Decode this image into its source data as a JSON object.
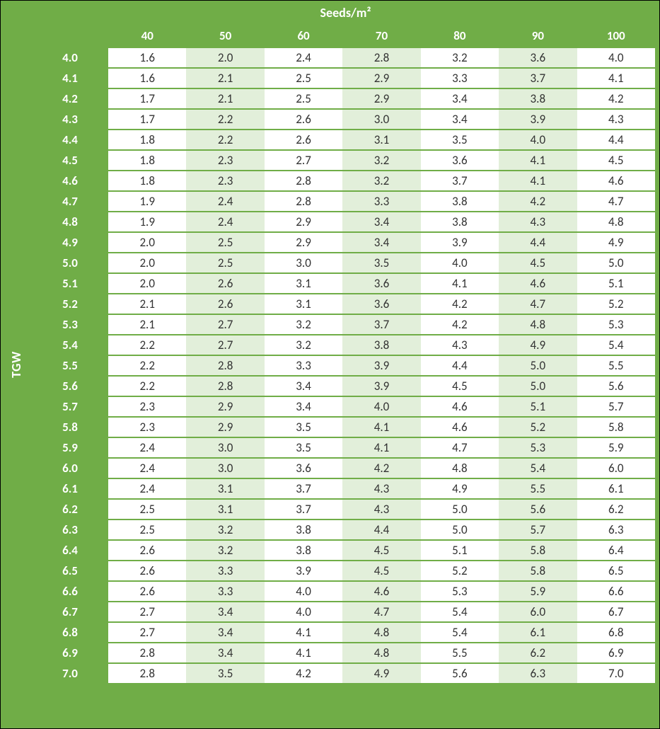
{
  "layout": {
    "vertical_label": "TGW",
    "top_label": "Seeds/m²",
    "colors": {
      "header_bg": "#70ad47",
      "header_text": "#ffffff",
      "cell_bg": "#ffffff",
      "cell_bg_shaded": "#e2efda",
      "cell_text": "#333333",
      "grid_line": "#70ad47",
      "outer_border": "#000000"
    },
    "font_family": "Calibri",
    "header_font_size_pt": 13,
    "cell_font_size_pt": 12,
    "shaded_columns": [
      1,
      3,
      5
    ]
  },
  "table": {
    "type": "table",
    "column_headers": [
      "40",
      "50",
      "60",
      "70",
      "80",
      "90",
      "100"
    ],
    "row_headers": [
      "4.0",
      "4.1",
      "4.2",
      "4.3",
      "4.4",
      "4.5",
      "4.6",
      "4.7",
      "4.8",
      "4.9",
      "5.0",
      "5.1",
      "5.2",
      "5.3",
      "5.4",
      "5.5",
      "5.6",
      "5.7",
      "5.8",
      "5.9",
      "6.0",
      "6.1",
      "6.2",
      "6.3",
      "6.4",
      "6.5",
      "6.6",
      "6.7",
      "6.8",
      "6.9",
      "7.0"
    ],
    "rows": [
      [
        "1.6",
        "2.0",
        "2.4",
        "2.8",
        "3.2",
        "3.6",
        "4.0"
      ],
      [
        "1.6",
        "2.1",
        "2.5",
        "2.9",
        "3.3",
        "3.7",
        "4.1"
      ],
      [
        "1.7",
        "2.1",
        "2.5",
        "2.9",
        "3.4",
        "3.8",
        "4.2"
      ],
      [
        "1.7",
        "2.2",
        "2.6",
        "3.0",
        "3.4",
        "3.9",
        "4.3"
      ],
      [
        "1.8",
        "2.2",
        "2.6",
        "3.1",
        "3.5",
        "4.0",
        "4.4"
      ],
      [
        "1.8",
        "2.3",
        "2.7",
        "3.2",
        "3.6",
        "4.1",
        "4.5"
      ],
      [
        "1.8",
        "2.3",
        "2.8",
        "3.2",
        "3.7",
        "4.1",
        "4.6"
      ],
      [
        "1.9",
        "2.4",
        "2.8",
        "3.3",
        "3.8",
        "4.2",
        "4.7"
      ],
      [
        "1.9",
        "2.4",
        "2.9",
        "3.4",
        "3.8",
        "4.3",
        "4.8"
      ],
      [
        "2.0",
        "2.5",
        "2.9",
        "3.4",
        "3.9",
        "4.4",
        "4.9"
      ],
      [
        "2.0",
        "2.5",
        "3.0",
        "3.5",
        "4.0",
        "4.5",
        "5.0"
      ],
      [
        "2.0",
        "2.6",
        "3.1",
        "3.6",
        "4.1",
        "4.6",
        "5.1"
      ],
      [
        "2.1",
        "2.6",
        "3.1",
        "3.6",
        "4.2",
        "4.7",
        "5.2"
      ],
      [
        "2.1",
        "2.7",
        "3.2",
        "3.7",
        "4.2",
        "4.8",
        "5.3"
      ],
      [
        "2.2",
        "2.7",
        "3.2",
        "3.8",
        "4.3",
        "4.9",
        "5.4"
      ],
      [
        "2.2",
        "2.8",
        "3.3",
        "3.9",
        "4.4",
        "5.0",
        "5.5"
      ],
      [
        "2.2",
        "2.8",
        "3.4",
        "3.9",
        "4.5",
        "5.0",
        "5.6"
      ],
      [
        "2.3",
        "2.9",
        "3.4",
        "4.0",
        "4.6",
        "5.1",
        "5.7"
      ],
      [
        "2.3",
        "2.9",
        "3.5",
        "4.1",
        "4.6",
        "5.2",
        "5.8"
      ],
      [
        "2.4",
        "3.0",
        "3.5",
        "4.1",
        "4.7",
        "5.3",
        "5.9"
      ],
      [
        "2.4",
        "3.0",
        "3.6",
        "4.2",
        "4.8",
        "5.4",
        "6.0"
      ],
      [
        "2.4",
        "3.1",
        "3.7",
        "4.3",
        "4.9",
        "5.5",
        "6.1"
      ],
      [
        "2.5",
        "3.1",
        "3.7",
        "4.3",
        "5.0",
        "5.6",
        "6.2"
      ],
      [
        "2.5",
        "3.2",
        "3.8",
        "4.4",
        "5.0",
        "5.7",
        "6.3"
      ],
      [
        "2.6",
        "3.2",
        "3.8",
        "4.5",
        "5.1",
        "5.8",
        "6.4"
      ],
      [
        "2.6",
        "3.3",
        "3.9",
        "4.5",
        "5.2",
        "5.8",
        "6.5"
      ],
      [
        "2.6",
        "3.3",
        "4.0",
        "4.6",
        "5.3",
        "5.9",
        "6.6"
      ],
      [
        "2.7",
        "3.4",
        "4.0",
        "4.7",
        "5.4",
        "6.0",
        "6.7"
      ],
      [
        "2.7",
        "3.4",
        "4.1",
        "4.8",
        "5.4",
        "6.1",
        "6.8"
      ],
      [
        "2.8",
        "3.4",
        "4.1",
        "4.8",
        "5.5",
        "6.2",
        "6.9"
      ],
      [
        "2.8",
        "3.5",
        "4.2",
        "4.9",
        "5.6",
        "6.3",
        "7.0"
      ]
    ]
  }
}
